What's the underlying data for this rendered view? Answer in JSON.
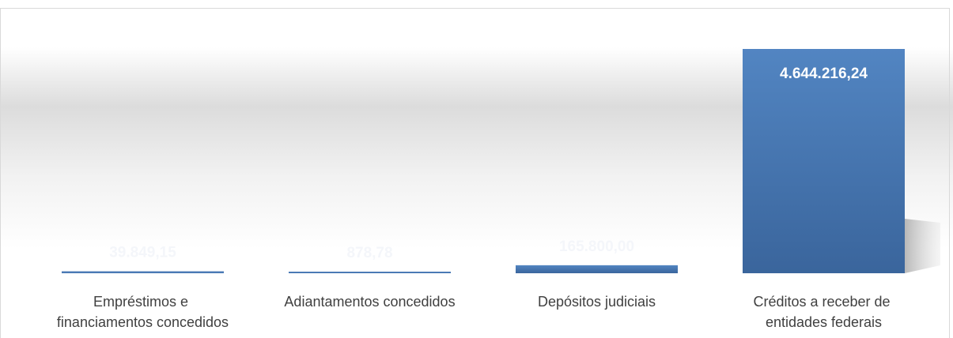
{
  "chart_data": {
    "type": "bar",
    "categories": [
      "Empréstimos e financiamentos concedidos",
      "Adiantamentos concedidos",
      "Depósitos judiciais",
      "Créditos a receber de entidades federais"
    ],
    "values": [
      39849.15,
      878.78,
      165800.0,
      4644216.24
    ],
    "value_labels": [
      "39.849,15",
      "878,78",
      "165.800,00",
      "4.644.216,24"
    ],
    "color": "#4a7ab5"
  }
}
